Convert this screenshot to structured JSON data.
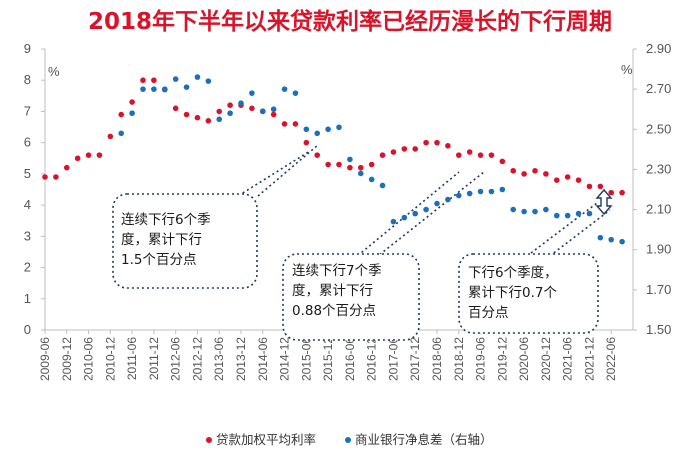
{
  "title": "2018年下半年以来贷款利率已经历漫长的下行周期",
  "chart_data": {
    "type": "scatter",
    "title": "2018年下半年以来贷款利率已经历漫长的下行周期",
    "left_axis": {
      "unit": "%",
      "min": 0,
      "max": 9,
      "ticks": [
        "0",
        "1",
        "2",
        "3",
        "4",
        "5",
        "6",
        "7",
        "8",
        "9"
      ]
    },
    "right_axis": {
      "unit": "%",
      "min": 1.5,
      "max": 2.9,
      "ticks": [
        "1.50",
        "1.70",
        "1.90",
        "2.10",
        "2.30",
        "2.50",
        "2.70",
        "2.90"
      ]
    },
    "x_ticks": [
      "2009-06",
      "2009-12",
      "2010-06",
      "2010-12",
      "2011-06",
      "2011-12",
      "2012-06",
      "2012-12",
      "2013-06",
      "2013-12",
      "2014-06",
      "2014-12",
      "2015-06",
      "2015-12",
      "2016-06",
      "2016-12",
      "2017-06",
      "2017-12",
      "2018-06",
      "2018-12",
      "2019-06",
      "2019-12",
      "2020-06",
      "2020-12",
      "2021-06",
      "2021-12",
      "2022-06"
    ],
    "series": [
      {
        "name": "贷款加权平均利率",
        "color": "#d9142a",
        "axis": "left",
        "points": [
          [
            "2009-06",
            4.9
          ],
          [
            "2009-09",
            4.9
          ],
          [
            "2009-12",
            5.2
          ],
          [
            "2010-03",
            5.5
          ],
          [
            "2010-06",
            5.6
          ],
          [
            "2010-09",
            5.6
          ],
          [
            "2010-12",
            6.2
          ],
          [
            "2011-03",
            6.9
          ],
          [
            "2011-06",
            7.3
          ],
          [
            "2011-09",
            8.0
          ],
          [
            "2011-12",
            8.0
          ],
          [
            "2012-03",
            7.7
          ],
          [
            "2012-06",
            7.1
          ],
          [
            "2012-09",
            6.9
          ],
          [
            "2012-12",
            6.8
          ],
          [
            "2013-03",
            6.7
          ],
          [
            "2013-06",
            7.0
          ],
          [
            "2013-09",
            7.2
          ],
          [
            "2013-12",
            7.2
          ],
          [
            "2014-03",
            7.1
          ],
          [
            "2014-06",
            7.0
          ],
          [
            "2014-09",
            6.9
          ],
          [
            "2014-12",
            6.6
          ],
          [
            "2015-03",
            6.6
          ],
          [
            "2015-06",
            6.0
          ],
          [
            "2015-09",
            5.6
          ],
          [
            "2015-12",
            5.3
          ],
          [
            "2016-03",
            5.3
          ],
          [
            "2016-06",
            5.2
          ],
          [
            "2016-09",
            5.2
          ],
          [
            "2016-12",
            5.3
          ],
          [
            "2017-03",
            5.6
          ],
          [
            "2017-06",
            5.7
          ],
          [
            "2017-09",
            5.8
          ],
          [
            "2017-12",
            5.8
          ],
          [
            "2018-03",
            6.0
          ],
          [
            "2018-06",
            6.0
          ],
          [
            "2018-09",
            5.9
          ],
          [
            "2018-12",
            5.6
          ],
          [
            "2019-03",
            5.7
          ],
          [
            "2019-06",
            5.6
          ],
          [
            "2019-09",
            5.6
          ],
          [
            "2019-12",
            5.4
          ],
          [
            "2020-03",
            5.1
          ],
          [
            "2020-06",
            5.0
          ],
          [
            "2020-09",
            5.1
          ],
          [
            "2020-12",
            5.0
          ],
          [
            "2021-03",
            4.8
          ],
          [
            "2021-06",
            4.9
          ],
          [
            "2021-09",
            4.8
          ],
          [
            "2021-12",
            4.6
          ],
          [
            "2022-03",
            4.6
          ],
          [
            "2022-06",
            4.4
          ],
          [
            "2022-09",
            4.4
          ]
        ]
      },
      {
        "name": "商业银行净息差（右轴）",
        "color": "#1a6fbf",
        "axis": "right",
        "points": [
          [
            "2011-03",
            2.48
          ],
          [
            "2011-06",
            2.58
          ],
          [
            "2011-09",
            2.7
          ],
          [
            "2011-12",
            2.7
          ],
          [
            "2012-03",
            2.7
          ],
          [
            "2012-06",
            2.75
          ],
          [
            "2012-09",
            2.71
          ],
          [
            "2012-12",
            2.76
          ],
          [
            "2013-03",
            2.74
          ],
          [
            "2013-06",
            2.55
          ],
          [
            "2013-09",
            2.58
          ],
          [
            "2013-12",
            2.63
          ],
          [
            "2014-03",
            2.68
          ],
          [
            "2014-06",
            2.59
          ],
          [
            "2014-09",
            2.6
          ],
          [
            "2014-12",
            2.7
          ],
          [
            "2015-03",
            2.68
          ],
          [
            "2015-06",
            2.5
          ],
          [
            "2015-09",
            2.48
          ],
          [
            "2015-12",
            2.5
          ],
          [
            "2016-03",
            2.51
          ],
          [
            "2016-06",
            2.35
          ],
          [
            "2016-09",
            2.28
          ],
          [
            "2016-12",
            2.25
          ],
          [
            "2017-03",
            2.22
          ],
          [
            "2017-06",
            2.04
          ],
          [
            "2017-09",
            2.06
          ],
          [
            "2017-12",
            2.08
          ],
          [
            "2018-03",
            2.1
          ],
          [
            "2018-06",
            2.13
          ],
          [
            "2018-09",
            2.15
          ],
          [
            "2018-12",
            2.17
          ],
          [
            "2019-03",
            2.18
          ],
          [
            "2019-06",
            2.19
          ],
          [
            "2019-09",
            2.19
          ],
          [
            "2019-12",
            2.2
          ],
          [
            "2020-03",
            2.1
          ],
          [
            "2020-06",
            2.09
          ],
          [
            "2020-09",
            2.09
          ],
          [
            "2020-12",
            2.1
          ],
          [
            "2021-03",
            2.07
          ],
          [
            "2021-06",
            2.07
          ],
          [
            "2021-09",
            2.08
          ],
          [
            "2021-12",
            2.08
          ],
          [
            "2022-03",
            1.96
          ],
          [
            "2022-06",
            1.95
          ],
          [
            "2022-09",
            1.94
          ]
        ]
      }
    ],
    "annotations": [
      {
        "lines": [
          "连续下行6个季",
          "度，累计下行",
          "1.5个百分点"
        ]
      },
      {
        "lines": [
          "连续下行7个季",
          "度，累计下行",
          "0.88个百分点"
        ]
      },
      {
        "lines": [
          "下行6个季度，",
          "累计下行0.7个",
          "百分点"
        ]
      }
    ],
    "legend": {
      "position": "bottom-right",
      "entries": [
        "贷款加权平均利率",
        "商业银行净息差（右轴）"
      ]
    }
  }
}
